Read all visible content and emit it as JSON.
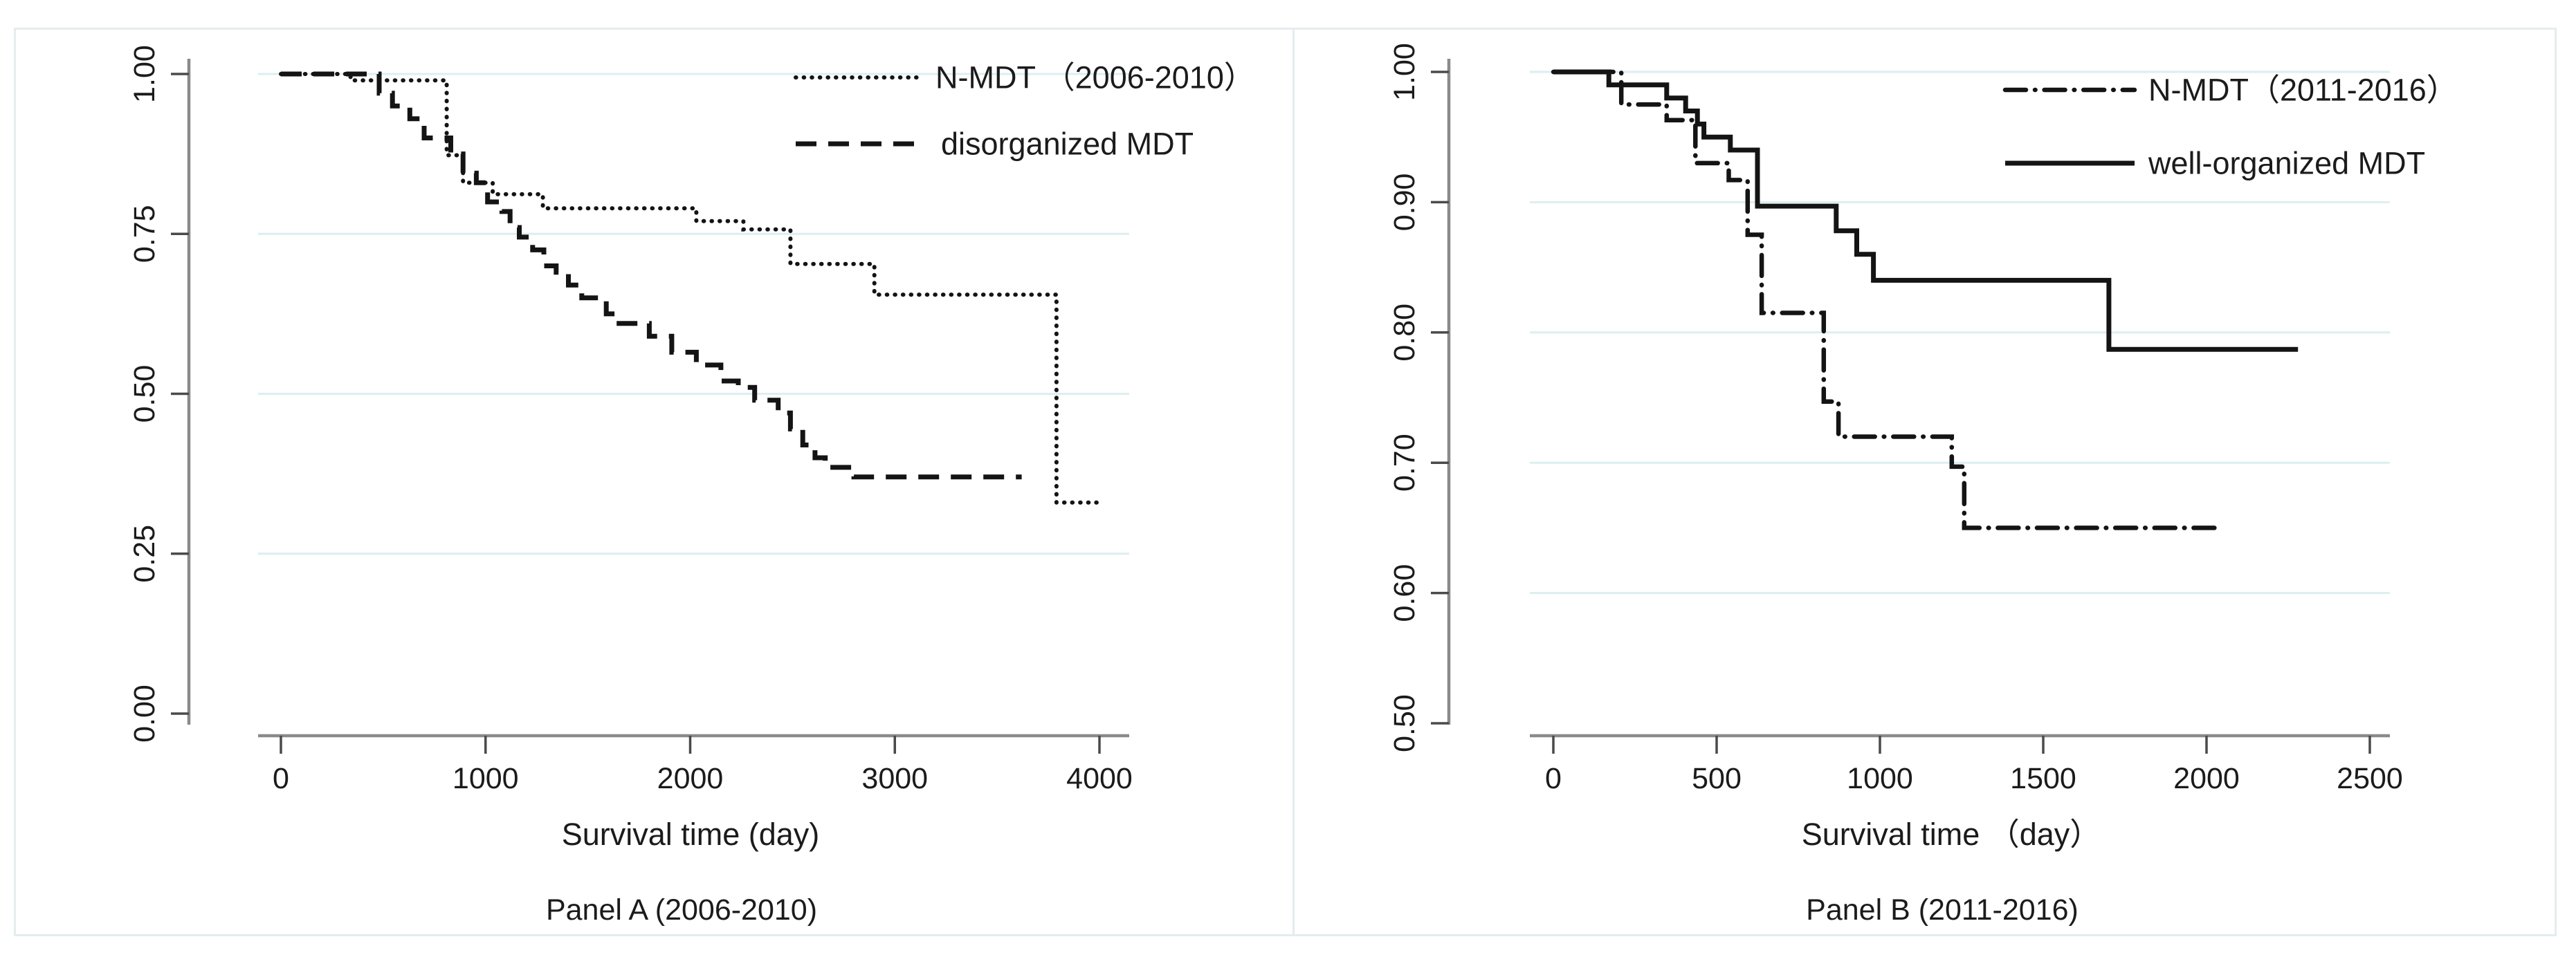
{
  "figure": {
    "background": "#ffffff",
    "border_color": "#e4edee",
    "curve_color": "#141414",
    "gridline_color": "#ddeef0",
    "axis_color": "#8a8a8a",
    "tick_color": "#4a4a4a"
  },
  "chart_data": [
    {
      "type": "line",
      "subtype": "kaplan-meier-step",
      "title": "Panel A (2006-2010)",
      "xlabel": "Survival time (day)",
      "ylabel": "",
      "xlim": [
        0,
        4200
      ],
      "ylim": [
        0.0,
        1.0
      ],
      "x_ticks": [
        0,
        1000,
        2000,
        3000,
        4000
      ],
      "y_ticks": [
        "1.00",
        "0.75",
        "0.50",
        "0.25",
        "0.00"
      ],
      "y_tick_values": [
        1.0,
        0.75,
        0.5,
        0.25,
        0.0
      ],
      "y_gridlines": [
        1.0,
        0.75,
        0.5,
        0.25
      ],
      "grid": true,
      "legend_position": "top-right",
      "legend": [
        {
          "label": "N-MDT （2006-2010）",
          "style": "dotted"
        },
        {
          "label": "disorganized MDT",
          "style": "dashed"
        }
      ],
      "series": [
        {
          "name": "N-MDT (2006-2010)",
          "style": "dotted",
          "end_day": 4000,
          "steps": [
            [
              0,
              1.0
            ],
            [
              340,
              0.99
            ],
            [
              810,
              0.873
            ],
            [
              890,
              0.83
            ],
            [
              1035,
              0.812
            ],
            [
              1280,
              0.79
            ],
            [
              2030,
              0.77
            ],
            [
              2260,
              0.757
            ],
            [
              2490,
              0.703
            ],
            [
              2900,
              0.655
            ],
            [
              3790,
              0.33
            ]
          ]
        },
        {
          "name": "disorganized MDT",
          "style": "dashed",
          "end_day": 3620,
          "steps": [
            [
              0,
              1.0
            ],
            [
              480,
              0.97
            ],
            [
              545,
              0.95
            ],
            [
              630,
              0.93
            ],
            [
              700,
              0.9
            ],
            [
              830,
              0.875
            ],
            [
              890,
              0.845
            ],
            [
              955,
              0.83
            ],
            [
              1010,
              0.8
            ],
            [
              1080,
              0.785
            ],
            [
              1120,
              0.76
            ],
            [
              1165,
              0.745
            ],
            [
              1230,
              0.725
            ],
            [
              1285,
              0.7
            ],
            [
              1345,
              0.69
            ],
            [
              1405,
              0.67
            ],
            [
              1470,
              0.65
            ],
            [
              1590,
              0.625
            ],
            [
              1640,
              0.61
            ],
            [
              1800,
              0.59
            ],
            [
              1910,
              0.565
            ],
            [
              2030,
              0.545
            ],
            [
              2150,
              0.52
            ],
            [
              2235,
              0.51
            ],
            [
              2315,
              0.49
            ],
            [
              2430,
              0.47
            ],
            [
              2490,
              0.445
            ],
            [
              2550,
              0.42
            ],
            [
              2610,
              0.4
            ],
            [
              2660,
              0.385
            ],
            [
              2800,
              0.37
            ]
          ]
        }
      ]
    },
    {
      "type": "line",
      "subtype": "kaplan-meier-step",
      "title": "Panel B (2011-2016)",
      "xlabel": "Survival time （day）",
      "ylabel": "",
      "xlim": [
        0,
        2600
      ],
      "ylim": [
        0.5,
        1.0
      ],
      "x_ticks": [
        0,
        500,
        1000,
        1500,
        2000,
        2500
      ],
      "y_ticks": [
        "1.00",
        "0.90",
        "0.80",
        "0.70",
        "0.60",
        "0.50"
      ],
      "y_tick_values": [
        1.0,
        0.9,
        0.8,
        0.7,
        0.6,
        0.5
      ],
      "y_gridlines": [
        1.0,
        0.9,
        0.8,
        0.7,
        0.6
      ],
      "grid": true,
      "legend_position": "top-right",
      "legend": [
        {
          "label": "N-MDT（2011-2016）",
          "style": "dashdot"
        },
        {
          "label": "well-organized MDT",
          "style": "solid"
        }
      ],
      "series": [
        {
          "name": "N-MDT (2011-2016)",
          "style": "dashdot",
          "end_day": 2030,
          "steps": [
            [
              0,
              1.0
            ],
            [
              208,
              0.975
            ],
            [
              347,
              0.963
            ],
            [
              435,
              0.93
            ],
            [
              537,
              0.917
            ],
            [
              595,
              0.875
            ],
            [
              638,
              0.815
            ],
            [
              828,
              0.747
            ],
            [
              873,
              0.72
            ],
            [
              1220,
              0.697
            ],
            [
              1258,
              0.65
            ]
          ]
        },
        {
          "name": "well-organized MDT",
          "style": "solid",
          "end_day": 2280,
          "steps": [
            [
              0,
              1.0
            ],
            [
              170,
              0.99
            ],
            [
              347,
              0.98
            ],
            [
              405,
              0.97
            ],
            [
              441,
              0.96
            ],
            [
              461,
              0.95
            ],
            [
              542,
              0.94
            ],
            [
              625,
              0.897
            ],
            [
              866,
              0.878
            ],
            [
              929,
              0.86
            ],
            [
              980,
              0.84
            ],
            [
              1701,
              0.787
            ]
          ]
        }
      ]
    }
  ]
}
